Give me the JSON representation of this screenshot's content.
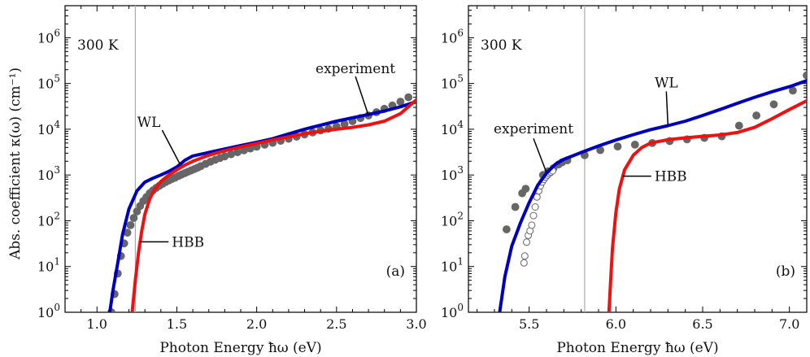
{
  "figure": {
    "y_axis_title": "Abs. coefficient κ(ω) (cm⁻¹)",
    "y_tick_base": "10",
    "colors": {
      "WL": "#0000bb",
      "HBB": "#ee1111",
      "experiment": "#666666",
      "marker_line": "#aaaaaa",
      "axes": "#000000"
    }
  },
  "chart_data": [
    {
      "type": "line",
      "panel": "(a)",
      "temperature_label": "300 K",
      "xlabel": "Photon Energy ħω (eV)",
      "ylabel": "Abs. coefficient κ(ω) (cm⁻¹)",
      "xlim": [
        0.8,
        3.0
      ],
      "ylim_log10": [
        0,
        6.7
      ],
      "y_scale": "log",
      "x_ticks": [
        1.0,
        1.5,
        2.0,
        2.5,
        3.0
      ],
      "x_tick_labels": [
        "1.0",
        "1.5",
        "2.0",
        "2.5",
        "3.0"
      ],
      "y_ticks_exp": [
        0,
        1,
        2,
        3,
        4,
        5,
        6
      ],
      "vertical_line_x": 1.24,
      "series": [
        {
          "name": "WL",
          "style": "line",
          "x": [
            1.08,
            1.1,
            1.13,
            1.16,
            1.2,
            1.25,
            1.3,
            1.35,
            1.4,
            1.45,
            1.5,
            1.55,
            1.6,
            1.7,
            1.8,
            1.9,
            2.0,
            2.1,
            2.2,
            2.3,
            2.4,
            2.5,
            2.6,
            2.7,
            2.8,
            2.9,
            3.0
          ],
          "y": [
            1.0,
            3.0,
            12.0,
            50.0,
            180.0,
            450.0,
            700.0,
            850.0,
            1000.0,
            1200.0,
            1500.0,
            2100.0,
            2600.0,
            3100.0,
            3700.0,
            4400.0,
            5200.0,
            6200.0,
            7900.0,
            10000.0,
            12300.0,
            15000.0,
            17800.0,
            21000.0,
            25000.0,
            31000.0,
            40000.0
          ]
        },
        {
          "name": "HBB",
          "style": "line",
          "x": [
            1.22,
            1.24,
            1.26,
            1.28,
            1.3,
            1.33,
            1.36,
            1.4,
            1.45,
            1.5,
            1.55,
            1.6,
            1.7,
            1.8,
            1.9,
            2.0,
            2.1,
            2.2,
            2.3,
            2.4,
            2.5,
            2.6,
            2.7,
            2.8,
            2.9,
            3.0
          ],
          "y": [
            1.0,
            5.0,
            20.0,
            60.0,
            140.0,
            300.0,
            480.0,
            720.0,
            1000.0,
            1300.0,
            1650.0,
            2000.0,
            2700.0,
            3400.0,
            4100.0,
            4900.0,
            5800.0,
            6800.0,
            8000.0,
            9000.0,
            10000.0,
            11000.0,
            12500.0,
            15000.0,
            22000.0,
            44000.0
          ]
        },
        {
          "name": "experiment",
          "style": "filled-markers",
          "x": [
            1.09,
            1.11,
            1.13,
            1.15,
            1.17,
            1.19,
            1.21,
            1.23,
            1.25,
            1.27,
            1.29,
            1.31,
            1.33,
            1.35,
            1.37,
            1.39,
            1.41,
            1.43,
            1.45,
            1.47,
            1.49,
            1.51,
            1.53,
            1.55,
            1.57,
            1.59,
            1.61,
            1.63,
            1.65,
            1.68,
            1.71,
            1.74,
            1.77,
            1.8,
            1.84,
            1.88,
            1.92,
            1.96,
            2.0,
            2.05,
            2.1,
            2.15,
            2.2,
            2.25,
            2.3,
            2.35,
            2.4,
            2.45,
            2.5,
            2.55,
            2.6,
            2.65,
            2.7,
            2.75,
            2.8,
            2.85,
            2.9,
            2.95
          ],
          "y": [
            1.0,
            2.5,
            7.0,
            17.0,
            32.0,
            55.0,
            80.0,
            115.0,
            160.0,
            210.0,
            270.0,
            330.0,
            400.0,
            460.0,
            520.0,
            580.0,
            640.0,
            700.0,
            760.0,
            820.0,
            880.0,
            950.0,
            1020.0,
            1100.0,
            1180.0,
            1260.0,
            1350.0,
            1450.0,
            1560.0,
            1750.0,
            1950.0,
            2150.0,
            2350.0,
            2550.0,
            2850.0,
            3150.0,
            3450.0,
            3800.0,
            4150.0,
            4600.0,
            5050.0,
            5600.0,
            6200.0,
            6900.0,
            7700.0,
            8500.0,
            9400.0,
            10300.0,
            11500.0,
            13000.0,
            15000.0,
            17500.0,
            20000.0,
            23500.0,
            28000.0,
            33000.0,
            40000.0,
            50000.0
          ]
        }
      ],
      "annotations": [
        {
          "text": "WL",
          "series": "WL",
          "at_x": 1.52
        },
        {
          "text": "HBB",
          "series": "HBB",
          "at_x": 1.27
        },
        {
          "text": "experiment",
          "series": "experiment",
          "at_x": 2.7
        }
      ]
    },
    {
      "type": "line",
      "panel": "(b)",
      "temperature_label": "300 K",
      "xlabel": "Photon Energy ħω (eV)",
      "xlim": [
        5.15,
        7.1
      ],
      "ylim_log10": [
        0,
        6.7
      ],
      "y_scale": "log",
      "x_ticks": [
        5.5,
        6.0,
        6.5,
        7.0
      ],
      "x_tick_labels": [
        "5.5",
        "6.0",
        "6.5",
        "7.0"
      ],
      "y_ticks_exp": [
        0,
        1,
        2,
        3,
        4,
        5,
        6
      ],
      "vertical_line_x": 5.82,
      "series": [
        {
          "name": "WL",
          "style": "line",
          "x": [
            5.33,
            5.36,
            5.4,
            5.45,
            5.5,
            5.55,
            5.6,
            5.65,
            5.7,
            5.75,
            5.8,
            5.9,
            6.0,
            6.1,
            6.2,
            6.3,
            6.4,
            6.5,
            6.6,
            6.7,
            6.8,
            6.9,
            7.0,
            7.1
          ],
          "y": [
            1.0,
            6.0,
            28.0,
            90.0,
            250.0,
            600.0,
            1100.0,
            1700.0,
            2200.0,
            2600.0,
            3100.0,
            4300.0,
            5800.0,
            7600.0,
            9800.0,
            12000.0,
            15000.0,
            20000.0,
            27000.0,
            37000.0,
            50000.0,
            66000.0,
            85000.0,
            115000.0
          ]
        },
        {
          "name": "HBB",
          "style": "line",
          "x": [
            5.96,
            5.97,
            5.98,
            6.0,
            6.02,
            6.05,
            6.1,
            6.15,
            6.2,
            6.3,
            6.4,
            6.5,
            6.6,
            6.7,
            6.8,
            6.9,
            7.0,
            7.1
          ],
          "y": [
            1.0,
            5.0,
            25.0,
            150.0,
            500.0,
            1300.0,
            2700.0,
            4000.0,
            5000.0,
            5900.0,
            6500.0,
            7000.0,
            7500.0,
            8500.0,
            11000.0,
            17000.0,
            27000.0,
            42000.0
          ]
        },
        {
          "name": "experiment (filled)",
          "style": "filled-markers",
          "x": [
            5.37,
            5.42,
            5.46,
            5.48,
            5.58,
            5.61,
            5.64,
            5.67,
            5.69,
            5.72,
            5.82,
            5.91,
            6.01,
            6.11,
            6.21,
            6.31,
            6.41,
            6.51,
            6.61,
            6.71,
            6.81,
            6.91,
            7.02,
            7.1
          ],
          "y": [
            65.0,
            200.0,
            400.0,
            500.0,
            1000.0,
            1200.0,
            1400.0,
            1700.0,
            1900.0,
            2100.0,
            2700.0,
            3500.0,
            4200.0,
            4600.0,
            5000.0,
            5500.0,
            6000.0,
            6500.0,
            7000.0,
            12000.0,
            20000.0,
            35000.0,
            70000.0,
            150000.0
          ]
        },
        {
          "name": "experiment (open)",
          "style": "open-markers",
          "x": [
            5.47,
            5.475,
            5.485,
            5.495,
            5.505,
            5.515,
            5.525,
            5.535,
            5.545,
            5.555,
            5.565,
            5.575,
            5.585,
            5.595,
            5.605,
            5.615,
            5.625,
            5.635
          ],
          "y": [
            12.0,
            17.0,
            34.0,
            48.0,
            60.0,
            80.0,
            130.0,
            200.0,
            330.0,
            450.0,
            580.0,
            700.0,
            800.0,
            900.0,
            990.0,
            1080.0,
            1150.0,
            1230.0
          ]
        }
      ],
      "annotations": [
        {
          "text": "WL",
          "series": "WL",
          "at_x": 6.3
        },
        {
          "text": "HBB",
          "series": "HBB",
          "at_x": 6.04
        },
        {
          "text": "experiment",
          "series": "experiment (filled)",
          "at_x": 5.6
        }
      ]
    }
  ]
}
